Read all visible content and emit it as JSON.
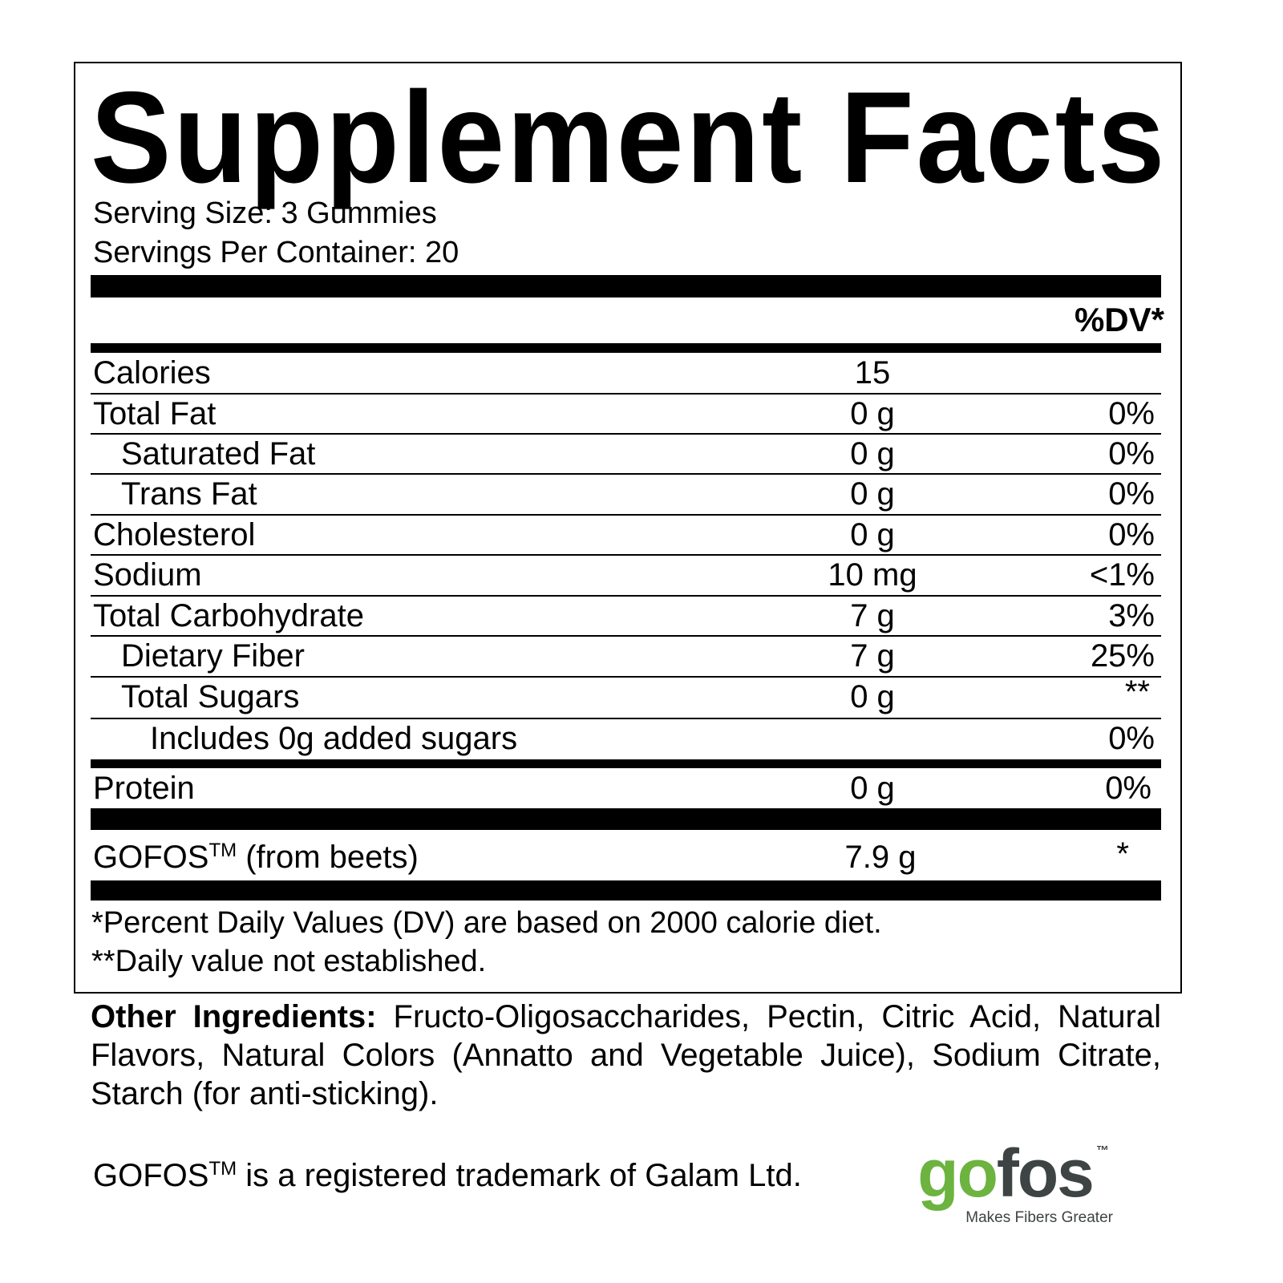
{
  "title": "Supplement Facts",
  "serving_size": "Serving Size: 3 Gummies",
  "servings_per_container": "Servings Per Container: 20",
  "dv_header": "%DV*",
  "rows": [
    {
      "label": "Calories",
      "amount": "15",
      "dv": ""
    },
    {
      "label": "Total Fat",
      "amount": "0 g",
      "dv": "0%"
    },
    {
      "label": "Saturated Fat",
      "amount": "0 g",
      "dv": "0%"
    },
    {
      "label": "Trans Fat",
      "amount": "0 g",
      "dv": "0%"
    },
    {
      "label": "Cholesterol",
      "amount": "0 g",
      "dv": "0%"
    },
    {
      "label": "Sodium",
      "amount": "10 mg",
      "dv": "<1%"
    },
    {
      "label": "Total Carbohydrate",
      "amount": "7 g",
      "dv": "3%"
    },
    {
      "label": "Dietary Fiber",
      "amount": "7 g",
      "dv": "25%"
    },
    {
      "label": "Total Sugars",
      "amount": "0 g",
      "dv": "**"
    },
    {
      "label": "Includes 0g added sugars",
      "amount": "",
      "dv": "0%"
    },
    {
      "label": "Protein",
      "amount": "0 g",
      "dv": "0%"
    }
  ],
  "gofos_row": {
    "label": "GOFOS",
    "tm": "TM",
    "label_suffix": " (from beets)",
    "amount": "7.9 g",
    "dv": "*"
  },
  "footnotes": [
    "*Percent Daily Values (DV) are based on 2000 calorie diet.",
    "**Daily value not established."
  ],
  "other_ingredients": {
    "label": "Other Ingredients:",
    "text": " Fructo-Oligosaccharides, Pectin, Citric Acid, Natural Flavors, Natural Colors (Annatto and Vegetable Juice), Sodium Citrate, Starch (for anti-sticking)."
  },
  "trademark": {
    "brand": "GOFOS",
    "tm": "TM",
    "text": " is a registered trademark of Galam Ltd."
  },
  "logo": {
    "go": "go",
    "fos": "fos",
    "tm": "™",
    "tagline": "Makes Fibers Greater",
    "green": "#6cb33f",
    "gray": "#3d4443"
  }
}
